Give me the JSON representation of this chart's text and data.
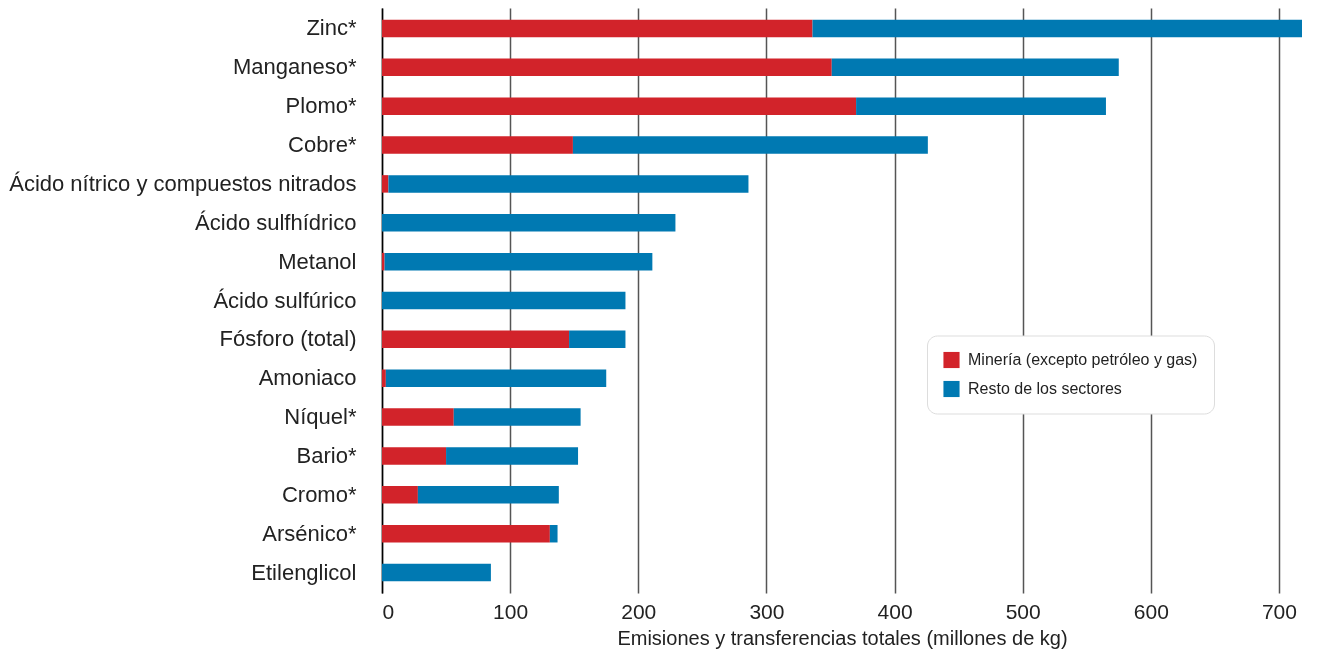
{
  "chart_data": {
    "type": "bar",
    "orientation": "horizontal",
    "stacked": true,
    "xlabel": "Emisiones y transferencias totales (millones de kg)",
    "categories": [
      "Zinc*",
      "Manganeso*",
      "Plomo*",
      "Cobre*",
      "Ácido nítrico y compuestos nitrados",
      "Ácido sulfhídrico",
      "Metanol",
      "Ácido sulfúrico",
      "Fósforo (total)",
      "Amoniaco",
      "Níquel*",
      "Bario*",
      "Cromo*",
      "Arsénico*",
      "Etilenglicol"
    ],
    "series": [
      {
        "name": "Minería (excepto petróleo y gas)",
        "color": "#d2232a",
        "values": [
          336,
          351,
          370,
          149,
          5,
          0,
          2,
          0,
          146,
          3,
          56,
          50,
          28,
          131,
          0
        ]
      },
      {
        "name": "Resto de los sectores",
        "color": "#0079b2",
        "values": [
          382,
          224,
          195,
          277,
          281,
          229,
          209,
          190,
          44,
          172,
          99,
          103,
          110,
          6,
          85
        ]
      }
    ],
    "xlim": [
      0,
      718
    ],
    "xticks": [
      0,
      100,
      200,
      300,
      400,
      500,
      600,
      700
    ],
    "grid": "x",
    "legend": "right"
  }
}
